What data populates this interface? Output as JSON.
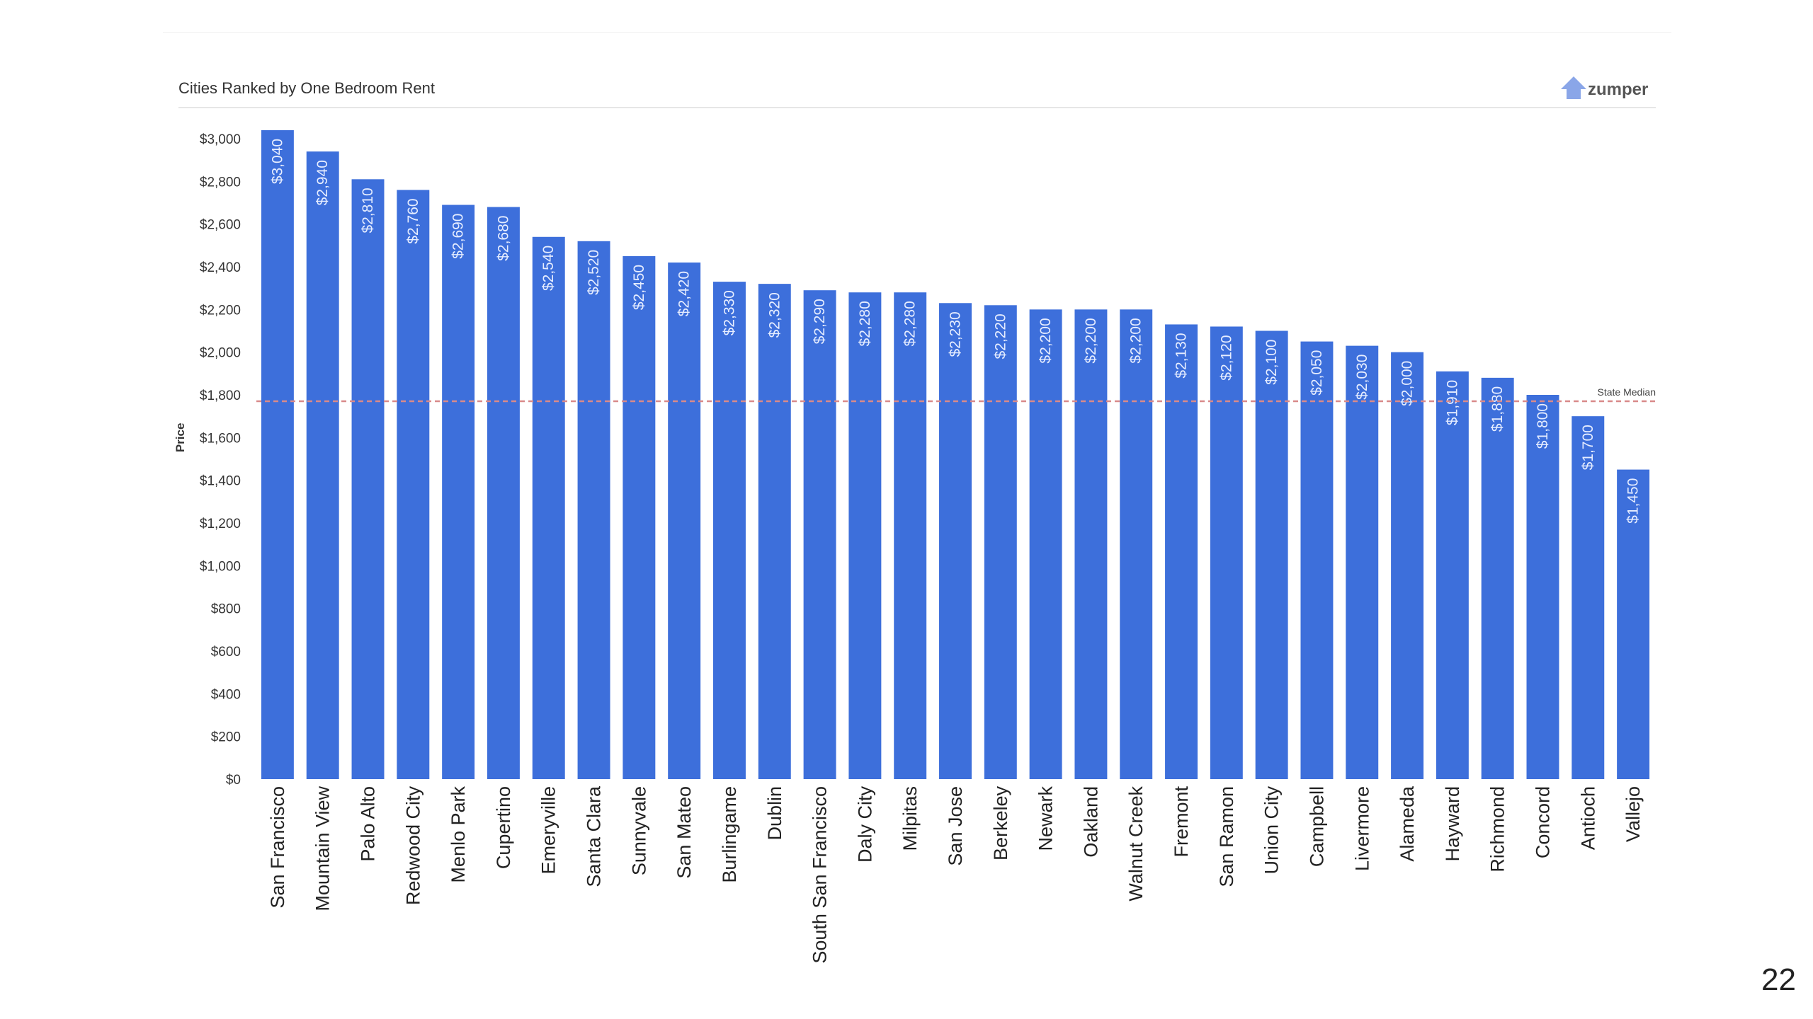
{
  "slide": {
    "page_number": "22"
  },
  "brand": {
    "name": "zumper",
    "icon": "house-icon"
  },
  "chart_data": {
    "type": "bar",
    "title": "Cities Ranked by One Bedroom Rent",
    "xlabel": "",
    "ylabel": "Price",
    "ylim": [
      0,
      3000
    ],
    "y_ticks": [
      "$0",
      "$200",
      "$400",
      "$600",
      "$800",
      "$1,000",
      "$1,200",
      "$1,400",
      "$1,600",
      "$1,800",
      "$2,000",
      "$2,200",
      "$2,400",
      "$2,600",
      "$2,800",
      "$3,000"
    ],
    "y_tick_values": [
      0,
      200,
      400,
      600,
      800,
      1000,
      1200,
      1400,
      1600,
      1800,
      2000,
      2200,
      2400,
      2600,
      2800,
      3000
    ],
    "categories": [
      "San Francisco",
      "Mountain View",
      "Palo Alto",
      "Redwood City",
      "Menlo Park",
      "Cupertino",
      "Emeryville",
      "Santa Clara",
      "Sunnyvale",
      "San Mateo",
      "Burlingame",
      "Dublin",
      "South San Francisco",
      "Daly City",
      "Milpitas",
      "San Jose",
      "Berkeley",
      "Newark",
      "Oakland",
      "Walnut Creek",
      "Fremont",
      "San Ramon",
      "Union City",
      "Campbell",
      "Livermore",
      "Alameda",
      "Hayward",
      "Richmond",
      "Concord",
      "Antioch",
      "Vallejo"
    ],
    "values": [
      3040,
      2940,
      2810,
      2760,
      2690,
      2680,
      2540,
      2520,
      2450,
      2420,
      2330,
      2320,
      2290,
      2280,
      2280,
      2230,
      2220,
      2200,
      2200,
      2200,
      2130,
      2120,
      2100,
      2050,
      2030,
      2000,
      1910,
      1880,
      1800,
      1700,
      1450
    ],
    "data_labels": [
      "$3,040",
      "$2,940",
      "$2,810",
      "$2,760",
      "$2,690",
      "$2,680",
      "$2,540",
      "$2,520",
      "$2,450",
      "$2,420",
      "$2,330",
      "$2,320",
      "$2,290",
      "$2,280",
      "$2,280",
      "$2,230",
      "$2,220",
      "$2,200",
      "$2,200",
      "$2,200",
      "$2,130",
      "$2,120",
      "$2,100",
      "$2,050",
      "$2,030",
      "$2,000",
      "$1,910",
      "$1,880",
      "$1,800",
      "$1,700",
      "$1,450"
    ],
    "reference_line": {
      "label": "State Median",
      "value": 1770,
      "color": "#d98a8a"
    },
    "bar_color": "#3d6fdb",
    "label_color": "#e6edff",
    "grid": false
  }
}
